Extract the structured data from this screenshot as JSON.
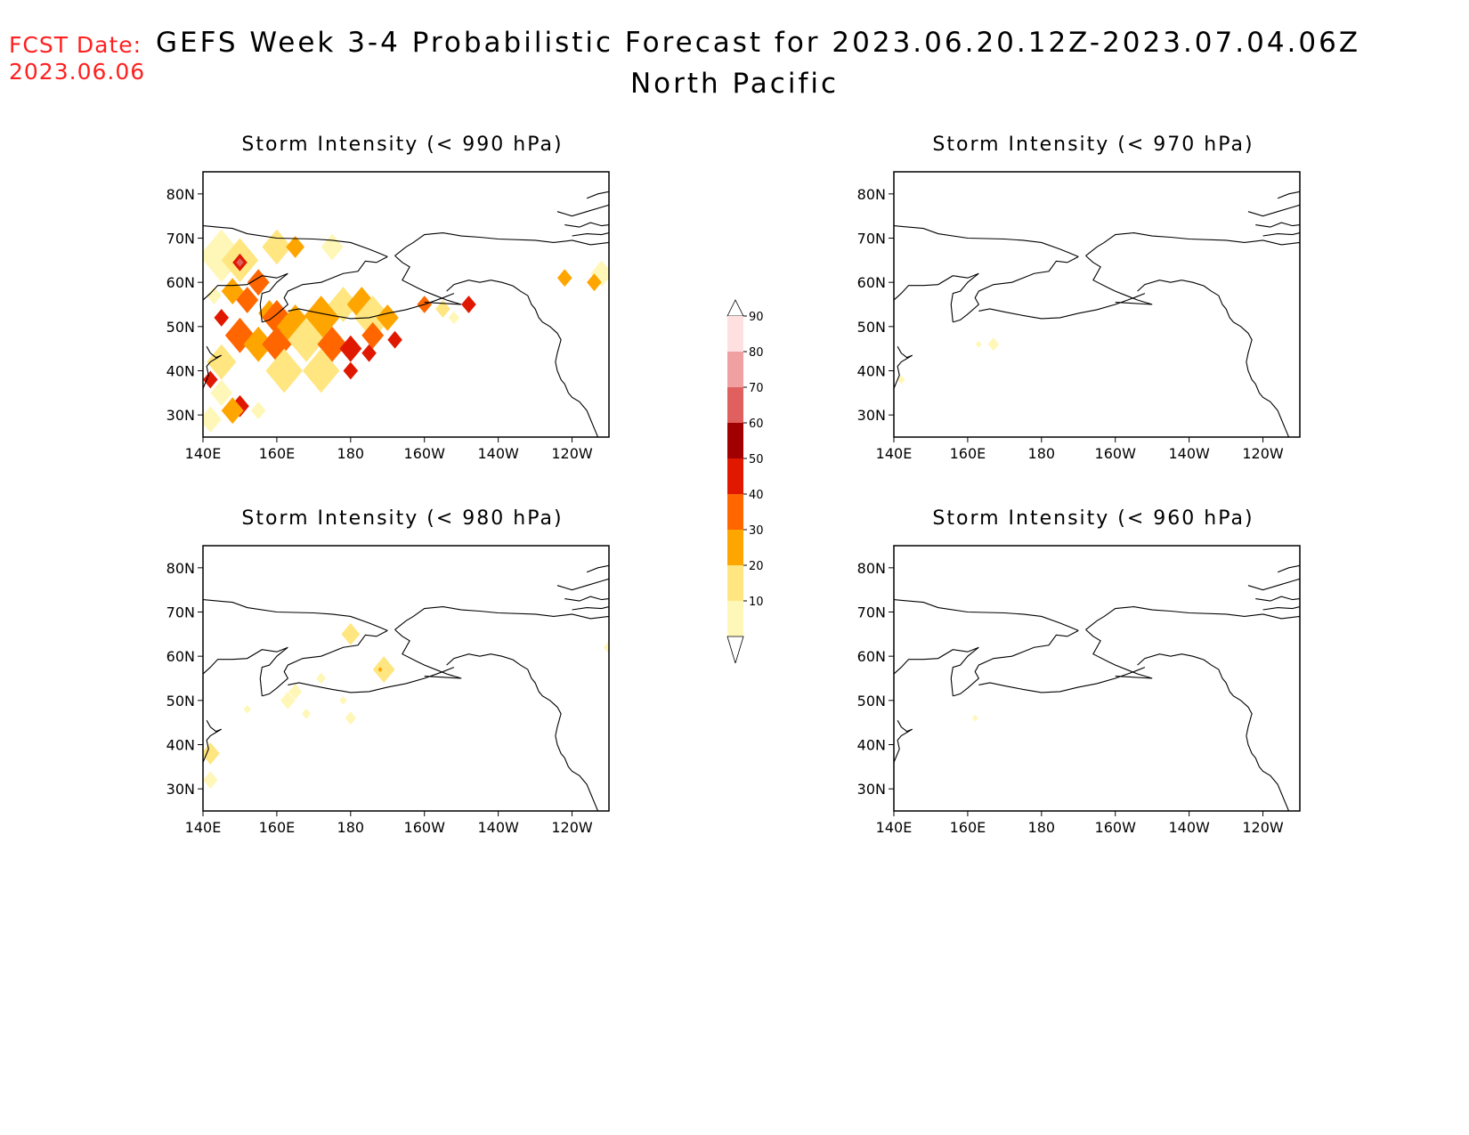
{
  "header": {
    "fcst_label": "FCST Date:",
    "fcst_date": "2023.06.06",
    "title": "GEFS Week 3-4 Probabilistic Forecast for 2023.06.20.12Z-2023.07.04.06Z",
    "subtitle": "North Pacific"
  },
  "colors": {
    "fcst_text": "#ff2020",
    "levels": [
      "#fff7b8",
      "#ffe680",
      "#ffa500",
      "#ff6600",
      "#e01800",
      "#a00000",
      "#e06060",
      "#f0a0a0",
      "#ffe0e0"
    ]
  },
  "colorbar": {
    "labels": [
      "10",
      "20",
      "30",
      "40",
      "50",
      "60",
      "70",
      "80",
      "90"
    ]
  },
  "axes": {
    "x_ticks": [
      "140E",
      "160E",
      "180",
      "160W",
      "140W",
      "120W"
    ],
    "y_ticks": [
      "80N",
      "70N",
      "60N",
      "50N",
      "40N",
      "30N"
    ]
  },
  "panels": [
    {
      "title": "Storm Intensity (< 990 hPa)"
    },
    {
      "title": "Storm Intensity (< 970 hPa)"
    },
    {
      "title": "Storm Intensity (< 980 hPa)"
    },
    {
      "title": "Storm Intensity (< 960 hPa)"
    }
  ]
}
